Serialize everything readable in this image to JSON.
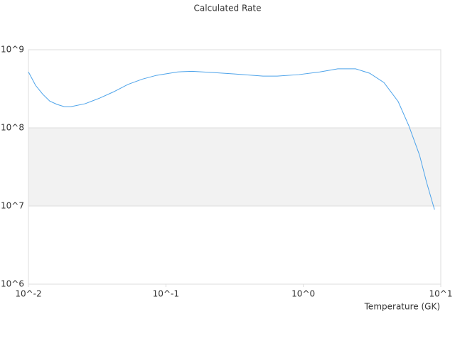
{
  "chart_data": {
    "type": "line",
    "title": "Calculated Rate",
    "x_label": "Temperature (GK)",
    "log_x": true,
    "log_y": true,
    "grid": true,
    "band_color": "#f2f2f2",
    "grid_color": "#dddddd",
    "xlim": [
      0.01,
      10
    ],
    "ylim": [
      1000000,
      1000000000
    ],
    "xticks": [
      {
        "value": 0.01,
        "label": "10^-2"
      },
      {
        "value": 0.1,
        "label": "10^-1"
      },
      {
        "value": 1,
        "label": "10^0"
      },
      {
        "value": 10,
        "label": "10^1"
      }
    ],
    "yticks": [
      {
        "value": 1000000,
        "label": "10^6"
      },
      {
        "value": 10000000,
        "label": "10^7"
      },
      {
        "value": 100000000,
        "label": "10^8"
      },
      {
        "value": 1000000000,
        "label": "10^9"
      }
    ],
    "x": [
      0.01,
      0.01127,
      0.0127,
      0.0143,
      0.0161,
      0.0182,
      0.0204,
      0.0259,
      0.0329,
      0.0418,
      0.053,
      0.0673,
      0.0853,
      0.122,
      0.155,
      0.221,
      0.316,
      0.509,
      0.646,
      0.925,
      1.32,
      1.78,
      2.4,
      3.04,
      3.86,
      4.9,
      5.86,
      7.0,
      7.89,
      9.0
    ],
    "series": [
      {
        "color": "#4da3ea",
        "values": [
          520000000,
          350000000,
          270000000,
          220000000,
          200000000,
          187000000,
          187000000,
          204000000,
          240000000,
          290000000,
          360000000,
          420000000,
          470000000,
          520000000,
          530000000,
          510000000,
          490000000,
          460000000,
          460000000,
          480000000,
          520000000,
          570000000,
          570000000,
          500000000,
          380000000,
          217000000,
          106000000,
          45000000,
          20000000,
          9000000
        ]
      }
    ]
  }
}
